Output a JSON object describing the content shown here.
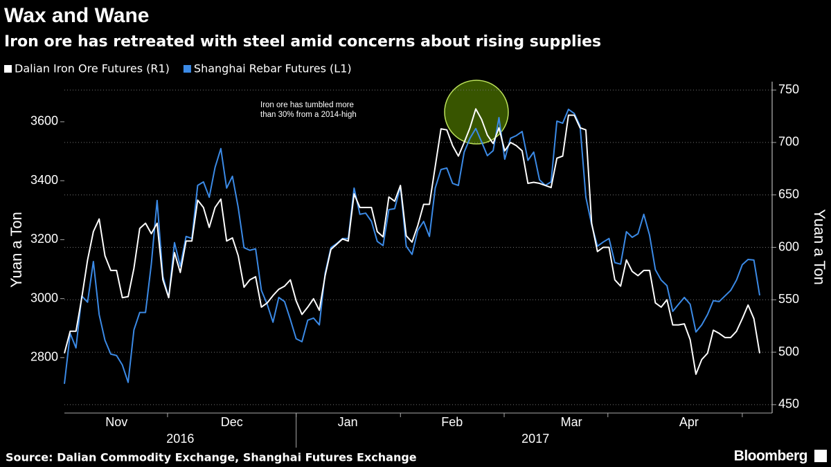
{
  "chart_data": {
    "type": "line",
    "title": "Wax and Wane",
    "subtitle": "Iron ore has retreated with steel amid concerns about rising supplies",
    "ylabel": "Yuan a Ton",
    "y2label": "Yuan a Ton",
    "source": "Source: Dalian Commodity Exchange, Shanghai Futures Exchange",
    "brand": "Bloomberg",
    "annotation": [
      "Iron ore has tumbled more",
      "than 30% from a 2014-high"
    ],
    "ylim": [
      2612,
      3736
    ],
    "yticks": [
      2800,
      3000,
      3200,
      3400,
      3600
    ],
    "y2lim": [
      442,
      758
    ],
    "y2ticks": [
      450,
      500,
      550,
      600,
      650,
      700,
      750
    ],
    "grid": true,
    "xlim": [
      0,
      120
    ],
    "xticks": [
      17.8,
      40,
      58,
      75.9,
      93.8,
      117
    ],
    "month_labels": [
      {
        "value": 9,
        "label": "Nov"
      },
      {
        "value": 28.9,
        "label": "Dec"
      },
      {
        "value": 48.9,
        "label": "Jan"
      },
      {
        "value": 66.9,
        "label": "Feb"
      },
      {
        "value": 87.5,
        "label": "Mar"
      },
      {
        "value": 107.8,
        "label": "Apr"
      }
    ],
    "year_labels": [
      {
        "value": 20,
        "label": "2016"
      },
      {
        "value": 81.3,
        "label": "2017"
      }
    ],
    "year_divider": 40,
    "series": [
      {
        "name": "Dalian Iron Ore Futures (R1)",
        "color": "#ffffff",
        "axis": "y2",
        "values": [
          499,
          520,
          520,
          552,
          588,
          615,
          627,
          592,
          578,
          578,
          552,
          553,
          580,
          618,
          623,
          613,
          623,
          569,
          552,
          595,
          576,
          606,
          606,
          645,
          638,
          619,
          638,
          646,
          606,
          609,
          592,
          562,
          569,
          572,
          543,
          547,
          554,
          560,
          563,
          569,
          549,
          536,
          543,
          551,
          540,
          573,
          598,
          603,
          608,
          606,
          651,
          638,
          638,
          638,
          615,
          610,
          648,
          644,
          659,
          611,
          605,
          621,
          641,
          641,
          677,
          713,
          712,
          697,
          687,
          700,
          714,
          732,
          722,
          707,
          699,
          714,
          692,
          700,
          697,
          692,
          661,
          662,
          661,
          659,
          657,
          685,
          687,
          726,
          726,
          714,
          712,
          623,
          596,
          600,
          600,
          569,
          563,
          588,
          577,
          573,
          578,
          578,
          547,
          543,
          550,
          526,
          526,
          527,
          512,
          479,
          493,
          499,
          521,
          518,
          514,
          514,
          520,
          532,
          545,
          532,
          499
        ]
      },
      {
        "name": "Shanghai Rebar Futures (L1)",
        "color": "#3b8ae6",
        "values": [
          2711,
          2882,
          2833,
          3009,
          2988,
          3126,
          2946,
          2859,
          2812,
          2807,
          2775,
          2716,
          2894,
          2953,
          2953,
          3117,
          3333,
          3075,
          3004,
          3190,
          3110,
          3211,
          3204,
          3384,
          3396,
          3344,
          3445,
          3509,
          3375,
          3415,
          3309,
          3173,
          3164,
          3169,
          3028,
          2981,
          2920,
          3004,
          2990,
          2929,
          2864,
          2854,
          2927,
          2934,
          2911,
          3086,
          3173,
          3187,
          3204,
          3204,
          3375,
          3286,
          3290,
          3262,
          3194,
          3180,
          3302,
          3305,
          3380,
          3178,
          3150,
          3232,
          3262,
          3211,
          3375,
          3438,
          3443,
          3391,
          3384,
          3497,
          3544,
          3577,
          3532,
          3485,
          3502,
          3614,
          3473,
          3544,
          3553,
          3567,
          3469,
          3497,
          3403,
          3384,
          3396,
          3602,
          3595,
          3642,
          3628,
          3586,
          3344,
          3251,
          3178,
          3192,
          3204,
          3122,
          3117,
          3227,
          3208,
          3220,
          3286,
          3215,
          3098,
          3063,
          3044,
          2957,
          2981,
          3004,
          2981,
          2887,
          2911,
          2946,
          2993,
          2990,
          3009,
          3028,
          3063,
          3115,
          3133,
          3131,
          3011
        ]
      }
    ]
  }
}
